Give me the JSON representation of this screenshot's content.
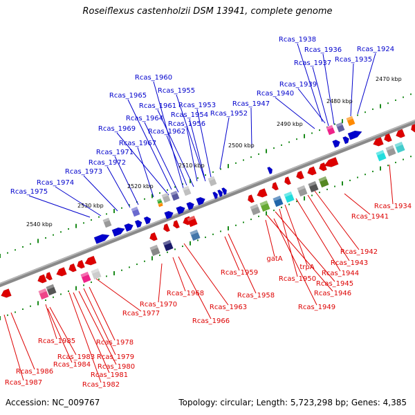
{
  "title": "Roseiflexus castenholzii DSM 13941, complete genome",
  "footer": {
    "accession": "Accession: NC_009767",
    "summary": "Topology: circular; Length: 5,723,298 bp; Genes: 4,385"
  },
  "colors": {
    "forward": "#0000cc",
    "reverse": "#dd0000",
    "backbone": "#777777",
    "ticks": "#1a8a1a"
  },
  "scale_labels": [
    "2470 kbp",
    "2480 kbp",
    "2490 kbp",
    "2500 kbp",
    "2510 kbp",
    "2520 kbp",
    "2530 kbp",
    "2540 kbp"
  ],
  "forward_gene_labels": [
    "Rcas_1938",
    "Rcas_1936",
    "Rcas_1924",
    "Rcas_1937",
    "Rcas_1935",
    "Rcas_1960",
    "Rcas_1939",
    "Rcas_1955",
    "Rcas_1940",
    "Rcas_1965",
    "Rcas_1961",
    "Rcas_1953",
    "Rcas_1947",
    "Rcas_1954",
    "Rcas_1952",
    "Rcas_1964",
    "Rcas_1956",
    "Rcas_1969",
    "Rcas_1962",
    "Rcas_1967",
    "Rcas_1971",
    "Rcas_1972",
    "Rcas_1973",
    "Rcas_1974",
    "Rcas_1975"
  ],
  "reverse_gene_labels": [
    "Rcas_1934",
    "Rcas_1941",
    "Rcas_1942",
    "Rcas_1943",
    "gatA",
    "Rcas_1944",
    "trpA",
    "Rcas_1950",
    "Rcas_1945",
    "Rcas_1959",
    "Rcas_1946",
    "Rcas_1958",
    "Rcas_1968",
    "Rcas_1949",
    "Rcas_1970",
    "Rcas_1963",
    "Rcas_1977",
    "Rcas_1966",
    "Rcas_1978",
    "Rcas_1985",
    "Rcas_1979",
    "Rcas_1983",
    "Rcas_1980",
    "Rcas_1984",
    "Rcas_1981",
    "Rcas_1986",
    "Rcas_1982",
    "Rcas_1987"
  ]
}
